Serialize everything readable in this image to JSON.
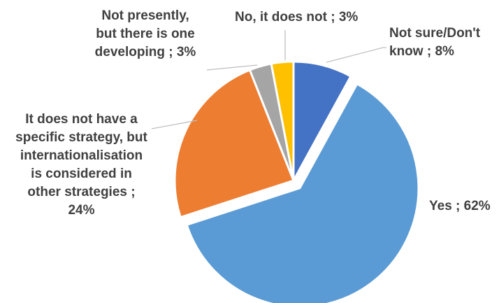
{
  "chart_data": {
    "type": "pie",
    "slices": [
      {
        "name": "Not sure/Don't know",
        "value": 8,
        "color": "#4472C4",
        "label_lines": [
          "Not sure/Don't",
          "know ; 8%"
        ]
      },
      {
        "name": "Yes",
        "value": 62,
        "color": "#5B9BD5",
        "label_lines": [
          "Yes ; 62%"
        ]
      },
      {
        "name": "It does not have a specific strategy, but internationalisation is considered in other strategies",
        "value": 24,
        "color": "#ED7D31",
        "label_lines": [
          "It does not have a",
          "specific strategy, but",
          "internationalisation",
          "is considered in",
          "other strategies ;",
          "24%"
        ]
      },
      {
        "name": "Not presently, but there is one developing",
        "value": 3,
        "color": "#A5A5A5",
        "label_lines": [
          "Not presently,",
          "but there is one",
          "developing ; 3%"
        ]
      },
      {
        "name": "No, it does not",
        "value": 3,
        "color": "#FFC000",
        "label_lines": [
          "No, it does not ; 3%"
        ]
      }
    ],
    "start_angle_deg": 0,
    "direction": "clockwise",
    "legend": "none",
    "leader_line_color": "#BFBFBF",
    "label_color": "#404040"
  }
}
